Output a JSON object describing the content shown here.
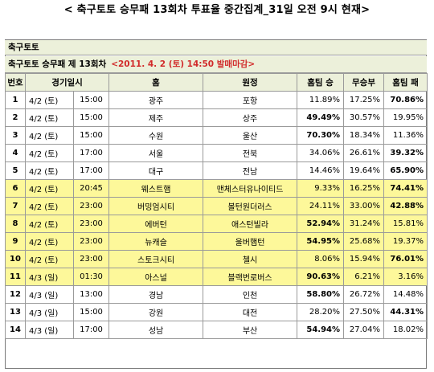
{
  "title": "< 축구토토 승무패 13회차 투표율 중간집계_31일 오전 9시 현재>",
  "section_label": "축구토토",
  "round_label": "축구토토 승무패 제 13회차",
  "deadline": "<2011. 4. 2 (토) 14:50 발매마감>",
  "headers": {
    "no": "번호",
    "datetime": "경기일시",
    "home": "홈",
    "away": "원정",
    "home_win": "홈팀 승",
    "draw": "무승부",
    "home_loss": "홈팀 패"
  },
  "rows": [
    {
      "no": "1",
      "date": "4/2 (토)",
      "time": "15:00",
      "home": "광주",
      "away": "포항",
      "win": "11.89%",
      "draw": "17.25%",
      "loss": "70.86%",
      "bold": "loss",
      "highlight": false
    },
    {
      "no": "2",
      "date": "4/2 (토)",
      "time": "15:00",
      "home": "제주",
      "away": "상주",
      "win": "49.49%",
      "draw": "30.57%",
      "loss": "19.95%",
      "bold": "win",
      "highlight": false
    },
    {
      "no": "3",
      "date": "4/2 (토)",
      "time": "15:00",
      "home": "수원",
      "away": "울산",
      "win": "70.30%",
      "draw": "18.34%",
      "loss": "11.36%",
      "bold": "win",
      "highlight": false
    },
    {
      "no": "4",
      "date": "4/2 (토)",
      "time": "17:00",
      "home": "서울",
      "away": "전북",
      "win": "34.06%",
      "draw": "26.61%",
      "loss": "39.32%",
      "bold": "loss",
      "highlight": false
    },
    {
      "no": "5",
      "date": "4/2 (토)",
      "time": "17:00",
      "home": "대구",
      "away": "전남",
      "win": "14.46%",
      "draw": "19.64%",
      "loss": "65.90%",
      "bold": "loss",
      "highlight": false
    },
    {
      "no": "6",
      "date": "4/2 (토)",
      "time": "20:45",
      "home": "웨스트햄",
      "away": "맨체스터유나이티드",
      "win": "9.33%",
      "draw": "16.25%",
      "loss": "74.41%",
      "bold": "loss",
      "highlight": true
    },
    {
      "no": "7",
      "date": "4/2 (토)",
      "time": "23:00",
      "home": "버밍엄시티",
      "away": "볼턴원더러스",
      "win": "24.11%",
      "draw": "33.00%",
      "loss": "42.88%",
      "bold": "loss",
      "highlight": true
    },
    {
      "no": "8",
      "date": "4/2 (토)",
      "time": "23:00",
      "home": "에버턴",
      "away": "애스턴빌라",
      "win": "52.94%",
      "draw": "31.24%",
      "loss": "15.81%",
      "bold": "win",
      "highlight": true
    },
    {
      "no": "9",
      "date": "4/2 (토)",
      "time": "23:00",
      "home": "뉴캐슬",
      "away": "울버햄턴",
      "win": "54.95%",
      "draw": "25.68%",
      "loss": "19.37%",
      "bold": "win",
      "highlight": true
    },
    {
      "no": "10",
      "date": "4/2 (토)",
      "time": "23:00",
      "home": "스토크시티",
      "away": "첼시",
      "win": "8.06%",
      "draw": "15.94%",
      "loss": "76.01%",
      "bold": "loss",
      "highlight": true
    },
    {
      "no": "11",
      "date": "4/3 (일)",
      "time": "01:30",
      "home": "아스널",
      "away": "블랙번로버스",
      "win": "90.63%",
      "draw": "6.21%",
      "loss": "3.16%",
      "bold": "win",
      "highlight": true
    },
    {
      "no": "12",
      "date": "4/3 (일)",
      "time": "13:00",
      "home": "경남",
      "away": "인천",
      "win": "58.80%",
      "draw": "26.72%",
      "loss": "14.48%",
      "bold": "win",
      "highlight": false
    },
    {
      "no": "13",
      "date": "4/3 (일)",
      "time": "15:00",
      "home": "강원",
      "away": "대전",
      "win": "28.20%",
      "draw": "27.50%",
      "loss": "44.31%",
      "bold": "loss",
      "highlight": false
    },
    {
      "no": "14",
      "date": "4/3 (일)",
      "time": "17:00",
      "home": "성남",
      "away": "부산",
      "win": "54.94%",
      "draw": "27.04%",
      "loss": "18.02%",
      "bold": "win",
      "highlight": false
    }
  ]
}
